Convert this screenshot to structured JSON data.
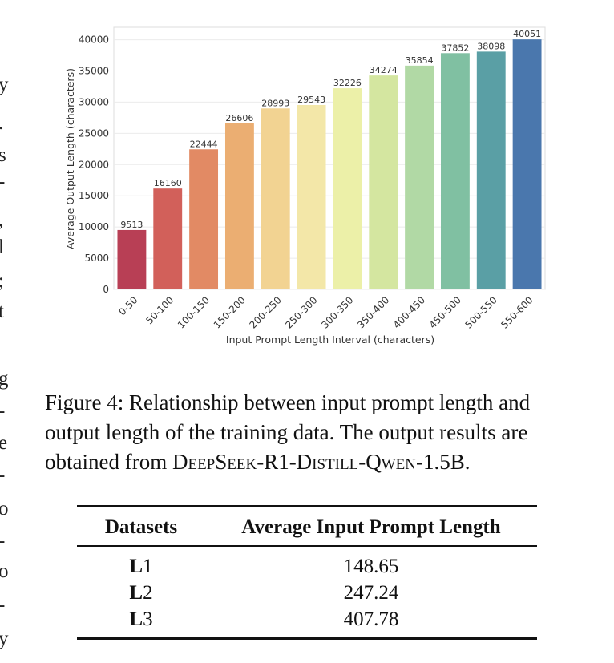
{
  "left_margin_fragments": [
    "y",
    ".",
    "s",
    "-",
    ",",
    "l",
    ";",
    "t",
    "g",
    "-",
    "e",
    "-",
    "o",
    "-",
    "o",
    "-",
    "y"
  ],
  "chart_data": {
    "type": "bar",
    "categories": [
      "0-50",
      "50-100",
      "100-150",
      "150-200",
      "200-250",
      "250-300",
      "300-350",
      "350-400",
      "400-450",
      "450-500",
      "500-550",
      "550-600"
    ],
    "values": [
      9513,
      16160,
      22444,
      26606,
      28993,
      29543,
      32226,
      34274,
      35854,
      37852,
      38098,
      40051
    ],
    "data_labels": [
      "9513",
      "16160",
      "22444",
      "26606",
      "28993",
      "29543",
      "32226",
      "34274",
      "35854",
      "37852",
      "38098",
      "40051"
    ],
    "colors": [
      "#b83f55",
      "#d2605a",
      "#e28a64",
      "#ebae72",
      "#f2d392",
      "#f3e7a8",
      "#ecf0a8",
      "#d4e6a0",
      "#b1d9a5",
      "#80c0a2",
      "#5a9fa5",
      "#4a77ad"
    ],
    "xlabel": "Input Prompt Length Interval (characters)",
    "ylabel": "Average Output Length (characters)",
    "ylim": [
      0,
      42000
    ],
    "yticks": [
      0,
      5000,
      10000,
      15000,
      20000,
      25000,
      30000,
      35000,
      40000
    ],
    "ytick_labels": [
      "0",
      "5000",
      "10000",
      "15000",
      "20000",
      "25000",
      "30000",
      "35000",
      "40000"
    ],
    "grid": true
  },
  "caption": {
    "line1": "Figure 4: Relationship between input prompt length and",
    "line2": "output length of the training data. The output results are",
    "line3_prefix": "obtained from ",
    "model_name": "DeepSeek-R1-Distill-Qwen-1.5B",
    "line3_suffix": "."
  },
  "table": {
    "headers": [
      "Datasets",
      "Average Input Prompt Length"
    ],
    "rows": [
      {
        "letter": "L",
        "num": "1",
        "value": "148.65"
      },
      {
        "letter": "L",
        "num": "2",
        "value": "247.24"
      },
      {
        "letter": "L",
        "num": "3",
        "value": "407.78"
      }
    ]
  }
}
